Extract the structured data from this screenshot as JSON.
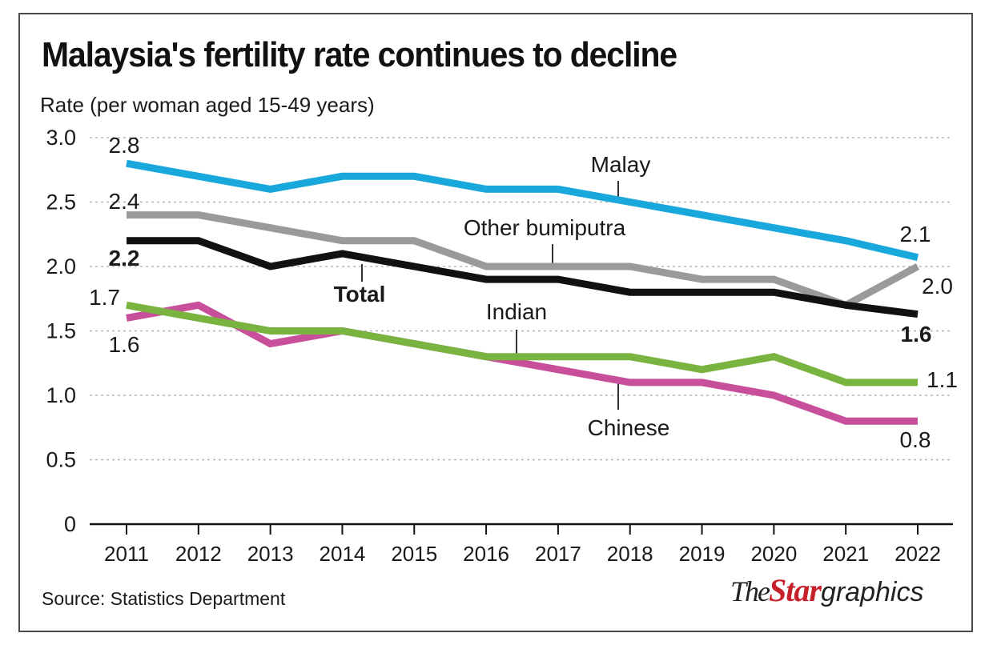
{
  "chart_data": {
    "type": "line",
    "title": "Malaysia's fertility rate continues to decline",
    "ylabel": "Rate (per woman aged 15-49 years)",
    "xlabel": "",
    "x": [
      2011,
      2012,
      2013,
      2014,
      2015,
      2016,
      2017,
      2018,
      2019,
      2020,
      2021,
      2022
    ],
    "ylim": [
      0,
      3.0
    ],
    "yticks": [
      "0",
      "0.5",
      "1.0",
      "1.5",
      "2.0",
      "2.5",
      "3.0"
    ],
    "xticks": [
      "2011",
      "2012",
      "2013",
      "2014",
      "2015",
      "2016",
      "2017",
      "2018",
      "2019",
      "2020",
      "2021",
      "2022"
    ],
    "grid": "horizontal-dotted",
    "series": [
      {
        "name": "Malay",
        "color": "#18a8dc",
        "values": [
          2.8,
          2.7,
          2.6,
          2.7,
          2.7,
          2.6,
          2.6,
          2.5,
          2.4,
          2.3,
          2.2,
          2.07
        ]
      },
      {
        "name": "Other bumiputra",
        "color": "#9a9a9a",
        "values": [
          2.4,
          2.4,
          2.3,
          2.2,
          2.2,
          2.0,
          2.0,
          2.0,
          1.9,
          1.9,
          1.7,
          2.0
        ]
      },
      {
        "name": "Total",
        "color": "#111111",
        "values": [
          2.2,
          2.2,
          2.0,
          2.1,
          2.0,
          1.9,
          1.9,
          1.8,
          1.8,
          1.8,
          1.7,
          1.63
        ]
      },
      {
        "name": "Chinese",
        "color": "#c8509a",
        "values": [
          1.6,
          1.7,
          1.4,
          1.5,
          1.4,
          1.3,
          1.2,
          1.1,
          1.1,
          1.0,
          0.8,
          0.8
        ]
      },
      {
        "name": "Indian",
        "color": "#79b340",
        "values": [
          1.7,
          1.6,
          1.5,
          1.5,
          1.4,
          1.3,
          1.3,
          1.3,
          1.2,
          1.3,
          1.1,
          1.1
        ]
      }
    ],
    "annotations": [
      {
        "text": "2.8",
        "series": "Malay",
        "x": 2011
      },
      {
        "text": "2.1",
        "series": "Malay",
        "x": 2022
      },
      {
        "text": "2.4",
        "series": "Other bumiputra",
        "x": 2011
      },
      {
        "text": "2.0",
        "series": "Other bumiputra",
        "x": 2022
      },
      {
        "text": "2.2",
        "series": "Total",
        "x": 2011
      },
      {
        "text": "1.6",
        "series": "Total",
        "x": 2022
      },
      {
        "text": "1.7",
        "series": "Indian",
        "x": 2011
      },
      {
        "text": "1.1",
        "series": "Indian",
        "x": 2022
      },
      {
        "text": "1.6",
        "series": "Chinese",
        "x": 2011
      },
      {
        "text": "0.8",
        "series": "Chinese",
        "x": 2022
      }
    ]
  },
  "source": "Source: Statistics Department",
  "logo": {
    "the": "The",
    "star": "Star",
    "graphics": "graphics"
  }
}
